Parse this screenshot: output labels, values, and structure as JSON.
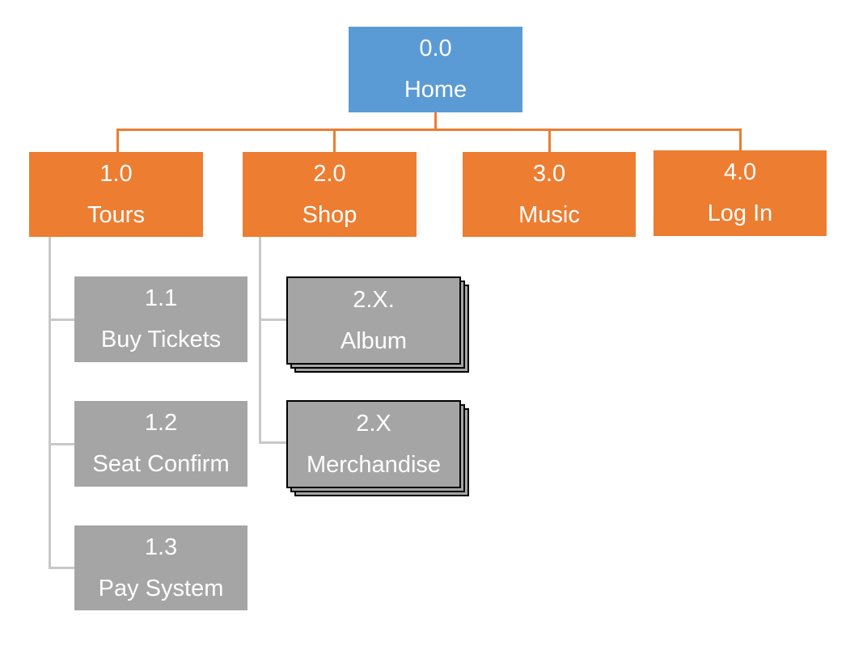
{
  "root": {
    "number": "0.0",
    "label": "Home"
  },
  "sections": [
    {
      "number": "1.0",
      "label": "Tours"
    },
    {
      "number": "2.0",
      "label": "Shop"
    },
    {
      "number": "3.0",
      "label": "Music"
    },
    {
      "number": "4.0",
      "label": "Log In"
    }
  ],
  "tours_children": [
    {
      "number": "1.1",
      "label": "Buy Tickets"
    },
    {
      "number": "1.2",
      "label": "Seat Confirm"
    },
    {
      "number": "1.3",
      "label": "Pay System"
    }
  ],
  "shop_children": [
    {
      "number": "2.X.",
      "label": "Album"
    },
    {
      "number": "2.X",
      "label": "Merchandise"
    }
  ],
  "colors": {
    "root": "#5b9bd5",
    "section": "#ed7d31",
    "child": "#a5a5a5",
    "connector_top": "#ed7d31",
    "connector_child": "#c8c8c8"
  }
}
